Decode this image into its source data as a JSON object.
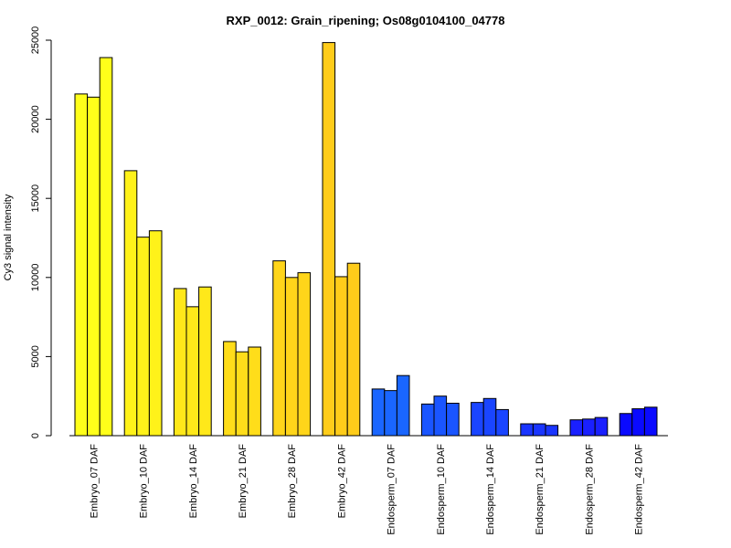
{
  "chart_data": {
    "type": "bar",
    "title": "RXP_0012: Grain_ripening; Os08g0104100_04778",
    "ylabel": "Cy3 signal intensity",
    "xlabel": "",
    "ylim": [
      0,
      25000
    ],
    "yticks": [
      0,
      5000,
      10000,
      15000,
      20000,
      25000
    ],
    "grid": false,
    "categories": [
      "Embryo_07 DAF",
      "Embryo_10 DAF",
      "Embryo_14 DAF",
      "Embryo_21 DAF",
      "Embryo_28 DAF",
      "Embryo_42 DAF",
      "Endosperm_07 DAF",
      "Endosperm_10 DAF",
      "Endosperm_14 DAF",
      "Endosperm_21 DAF",
      "Endosperm_28 DAF",
      "Endosperm_42 DAF"
    ],
    "colors": [
      "#FFFF1A",
      "#FFF21A",
      "#FFE81A",
      "#FFDD1A",
      "#FFD51A",
      "#FFCC1A",
      "#1A66FF",
      "#1A55FF",
      "#1A45FF",
      "#1A35FF",
      "#1A20FF",
      "#0A0AFF"
    ],
    "replicates": [
      [
        21600,
        21400,
        23900
      ],
      [
        16750,
        12550,
        12950
      ],
      [
        9300,
        8150,
        9400
      ],
      [
        5950,
        5300,
        5600
      ],
      [
        11050,
        10000,
        10300
      ],
      [
        24850,
        10050,
        10900
      ],
      [
        2950,
        2850,
        3800
      ],
      [
        2000,
        2500,
        2050
      ],
      [
        2100,
        2350,
        1650
      ],
      [
        750,
        750,
        650
      ],
      [
        1000,
        1050,
        1150
      ],
      [
        1400,
        1700,
        1800
      ]
    ]
  }
}
